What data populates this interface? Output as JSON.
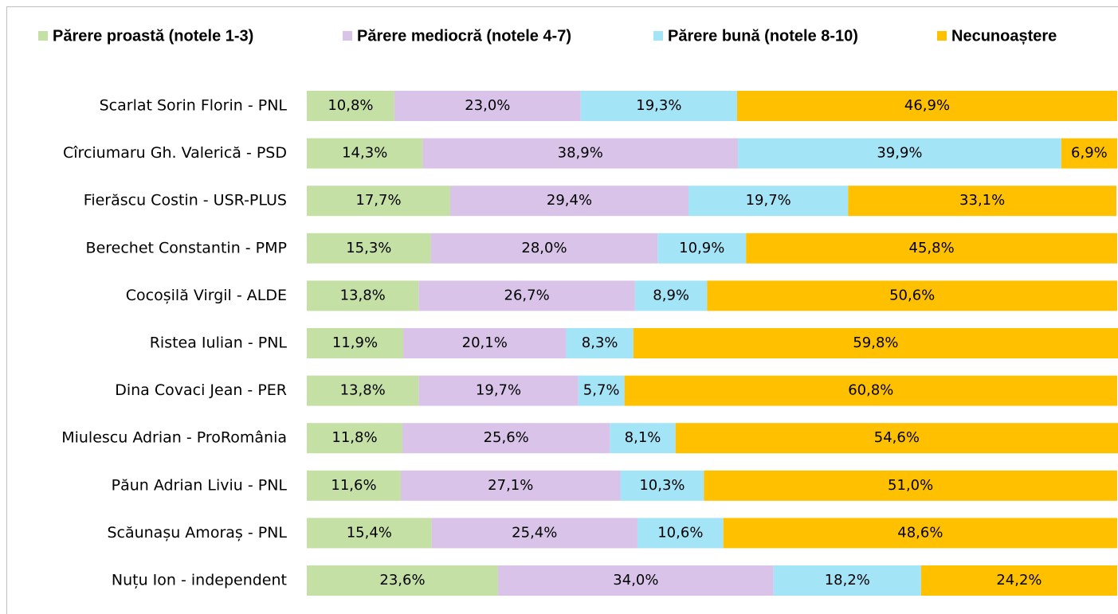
{
  "chart_data": {
    "type": "bar",
    "stacked": true,
    "orientation": "horizontal",
    "legend": "top",
    "categories": [
      "Scarlat Sorin Florin - PNL",
      "Cîrciumaru Gh. Valerică - PSD",
      "Fierăscu Costin - USR-PLUS",
      "Berechet Constantin - PMP",
      "Cocoșilă Virgil - ALDE",
      "Ristea Iulian - PNL",
      "Dina Covaci Jean - PER",
      "Miulescu Adrian - ProRomânia",
      "Păun Adrian Liviu - PNL",
      "Scăunașu Amoraș - PNL",
      "Nuțu Ion - independent"
    ],
    "series": [
      {
        "name": "Părere proastă (notele 1-3)",
        "color": "#c5e0a5",
        "values": [
          10.8,
          14.3,
          17.7,
          15.3,
          13.8,
          11.9,
          13.8,
          11.8,
          11.6,
          15.4,
          23.6
        ],
        "value_labels": [
          "10,8%",
          "14,3%",
          "17,7%",
          "15,3%",
          "13,8%",
          "11,9%",
          "13,8%",
          "11,8%",
          "11,6%",
          "15,4%",
          "23,6%"
        ]
      },
      {
        "name": "Părere mediocră (notele 4-7)",
        "color": "#d9c3e9",
        "values": [
          23.0,
          38.9,
          29.4,
          28.0,
          26.7,
          20.1,
          19.7,
          25.6,
          27.1,
          25.4,
          34.0
        ],
        "value_labels": [
          "23,0%",
          "38,9%",
          "29,4%",
          "28,0%",
          "26,7%",
          "20,1%",
          "19,7%",
          "25,6%",
          "27,1%",
          "25,4%",
          "34,0%"
        ]
      },
      {
        "name": "Părere bună (notele 8-10)",
        "color": "#a3e4f7",
        "values": [
          19.3,
          39.9,
          19.7,
          10.9,
          8.9,
          8.3,
          5.7,
          8.1,
          10.3,
          10.6,
          18.2
        ],
        "value_labels": [
          "19,3%",
          "39,9%",
          "19,7%",
          "10,9%",
          "8,9%",
          "8,3%",
          "5,7%",
          "8,1%",
          "10,3%",
          "10,6%",
          "18,2%"
        ]
      },
      {
        "name": "Necunoaștere",
        "color": "#ffc000",
        "values": [
          46.9,
          6.9,
          33.1,
          45.8,
          50.6,
          59.8,
          60.8,
          54.6,
          51.0,
          48.6,
          24.2
        ],
        "value_labels": [
          "46,9%",
          "6,9%",
          "33,1%",
          "45,8%",
          "50,6%",
          "59,8%",
          "60,8%",
          "54,6%",
          "51,0%",
          "48,6%",
          "24,2%"
        ]
      }
    ]
  }
}
